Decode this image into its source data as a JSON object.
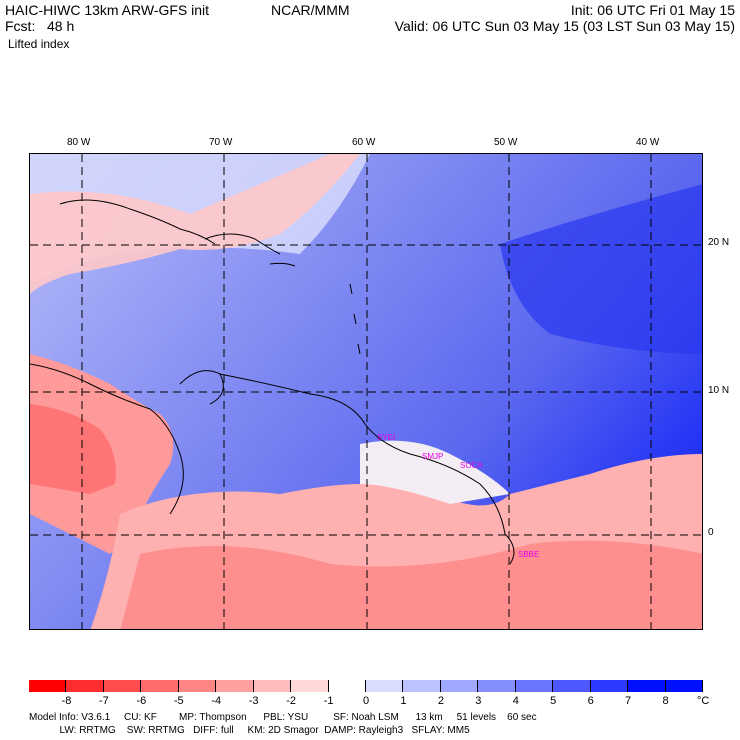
{
  "header": {
    "title": "HAIC-HIWC 13km ARW-GFS init",
    "org": "NCAR/MMM",
    "forecast": "Fcst:   48 h",
    "field": "Lifted index",
    "init": "Init: 06 UTC Fri 01 May 15",
    "valid": "Valid: 06 UTC Sun 03 May 15 (03 LST Sun 03 May 15)"
  },
  "map": {
    "lon_labels": [
      "80 W",
      "70 W",
      "60 W",
      "50 W",
      "40 W"
    ],
    "lat_labels": [
      "20 N",
      "10 N",
      "0"
    ],
    "stations": [
      "SYEI",
      "SMJP",
      "SOCA",
      "SBBE"
    ],
    "background_color": "#6d7bf0"
  },
  "legend": {
    "unit": "°C",
    "ticks": [
      "-8",
      "-7",
      "-6",
      "-5",
      "-4",
      "-3",
      "-2",
      "-1",
      "0",
      "1",
      "2",
      "3",
      "4",
      "5",
      "6",
      "7",
      "8"
    ],
    "colors": [
      "#ff0000",
      "#ff2d2d",
      "#ff4d4d",
      "#ff6a6a",
      "#ff8484",
      "#ffa0a0",
      "#ffbcbc",
      "#ffd8d8",
      "#ffffff",
      "#d8dcff",
      "#bcc2ff",
      "#a0a8ff",
      "#848eff",
      "#6a74ff",
      "#4d58ff",
      "#2d3aff",
      "#0010ff"
    ]
  },
  "footer": {
    "line1": "Model Info: V3.6.1     CU: KF        MP: Thompson      PBL: YSU         SF: Noah LSM      13 km     51 levels    60 sec",
    "line2": "           LW: RRTMG    SW: RRTMG   DIFF: full     KM: 2D Smagor  DAMP: Rayleigh3   SFLAY: MM5"
  }
}
